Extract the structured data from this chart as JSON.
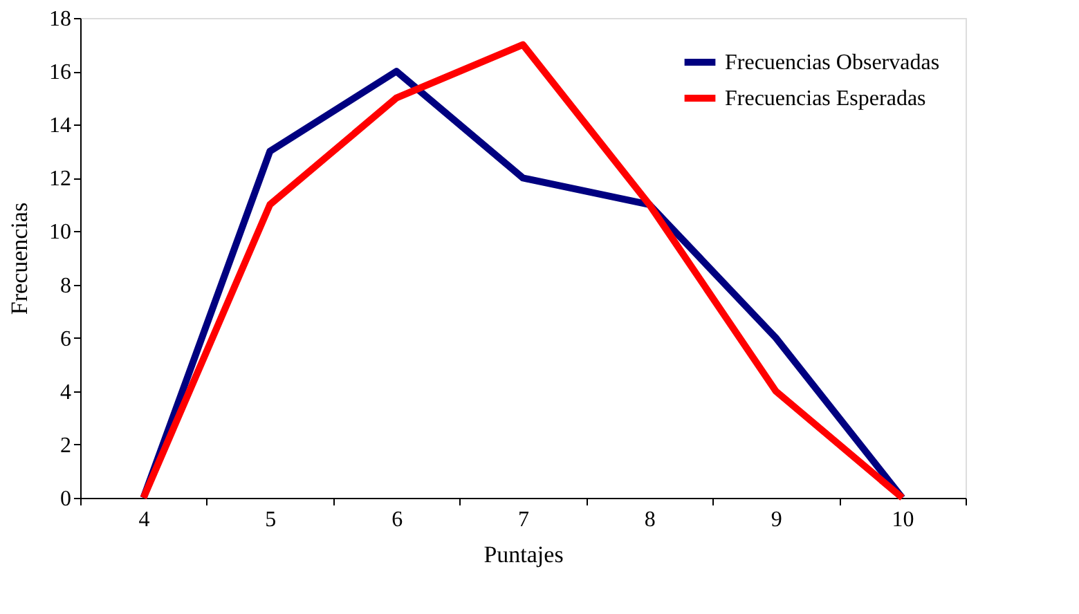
{
  "chart_data": {
    "type": "line",
    "xlabel": "Puntajes",
    "ylabel": "Frecuencias",
    "categories": [
      "4",
      "5",
      "6",
      "7",
      "8",
      "9",
      "10"
    ],
    "series": [
      {
        "name": "Frecuencias Observadas",
        "color": "#000080",
        "values": [
          0,
          13,
          16,
          12,
          11,
          6,
          0
        ]
      },
      {
        "name": "Frecuencias Esperadas",
        "color": "#ff0000",
        "values": [
          0,
          11,
          15,
          17,
          11,
          4,
          0
        ]
      }
    ],
    "ylim": [
      0,
      18
    ],
    "yticks": [
      0,
      2,
      4,
      6,
      8,
      10,
      12,
      14,
      16,
      18
    ],
    "grid": false,
    "legend": "top right",
    "marker": "none",
    "line_style": "solid"
  }
}
